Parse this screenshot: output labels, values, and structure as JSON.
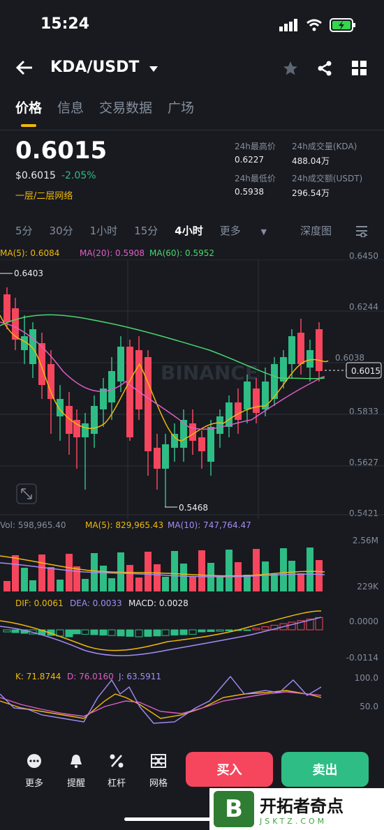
{
  "status": {
    "time": "15:24"
  },
  "header": {
    "pair": "KDA/USDT"
  },
  "tabs": [
    "价格",
    "信息",
    "交易数据",
    "广场"
  ],
  "ticker": {
    "price": "0.6015",
    "usd_price": "$0.6015",
    "change": "-2.05%",
    "network": "一层/二层网络",
    "high_label": "24h最高价",
    "high_value": "0.6227",
    "low_label": "24h最低价",
    "low_value": "0.5938",
    "vol_label": "24h成交量(KDA)",
    "vol_value": "488.04万",
    "amount_label": "24h成交额(USDT)",
    "amount_value": "296.54万"
  },
  "intervals": [
    "5分",
    "30分",
    "1小时",
    "15分",
    "4小时",
    "更多",
    "深度图"
  ],
  "ma": {
    "ma5": "MA(5): 0.6084",
    "ma20": "MA(20): 0.5908",
    "ma60": "MA(60): 0.5952"
  },
  "price_axis": [
    "0.6450",
    "0.6244",
    "0.6038",
    "0.5833",
    "0.5627",
    "0.5421"
  ],
  "chart_marks": {
    "high": "0.6403",
    "low": "0.5468",
    "current": "0.6015",
    "watermark": "BINANCE"
  },
  "volume": {
    "vol": "Vol: 598,965.40",
    "ma5": "MA(5): 829,965.43",
    "ma10": "MA(10): 747,764.47",
    "axis_top": "2.56M",
    "axis_bottom": "229K"
  },
  "macd": {
    "dif": "DIF: 0.0061",
    "dea": "DEA: 0.0033",
    "macd": "MACD: 0.0028",
    "axis_top": "0.0000",
    "axis_bottom": "-0.0114"
  },
  "kdj": {
    "k": "K: 71.8744",
    "d": "D: 76.0160",
    "j": "J: 63.5911",
    "axis_top": "100.0",
    "axis_mid": "50.0"
  },
  "bottom": {
    "more": "更多",
    "alert": "提醒",
    "leverage": "杠杆",
    "grid": "网格",
    "buy": "买入",
    "sell": "卖出"
  },
  "watermark_site": {
    "name": "开拓者奇点",
    "url": "JSKTZ.COM"
  },
  "colors": {
    "up": "#2ebd85",
    "down": "#f6465d",
    "accent": "#f0b90b",
    "ma5": "#f0b90b",
    "ma20": "#e05ec6",
    "ma60": "#4ad66d",
    "kdj_j": "#8e7cf0"
  }
}
